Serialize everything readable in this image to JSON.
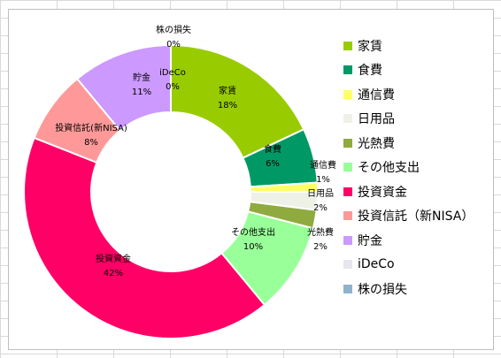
{
  "chart_data": {
    "type": "pie",
    "categories": [
      "家賃",
      "食費",
      "通信費",
      "日用品",
      "光熱費",
      "その他支出",
      "投資資金",
      "投資信託(新NISA)",
      "貯金",
      "iDeCo",
      "株の損失"
    ],
    "legend_labels": [
      "家賃",
      "食費",
      "通信費",
      "日用品",
      "光熱費",
      "その他支出",
      "投資資金",
      "投資信託（新NISA）",
      "貯金",
      "iDeCo",
      "株の損失"
    ],
    "values": [
      18,
      6,
      1,
      2,
      2,
      10,
      42,
      8,
      11,
      0,
      0
    ],
    "value_labels": [
      "18%",
      "6%",
      "1%",
      "2%",
      "2%",
      "10%",
      "42%",
      "8%",
      "11%",
      "0%",
      "0%"
    ],
    "colors": [
      "#99cc00",
      "#009966",
      "#ffff66",
      "#eef2e6",
      "#8faa3e",
      "#99ff99",
      "#ff0066",
      "#ff9999",
      "#cc99ff",
      "#e6e6ee",
      "#8fb3cc"
    ],
    "legend_position": "right",
    "donut": true
  }
}
